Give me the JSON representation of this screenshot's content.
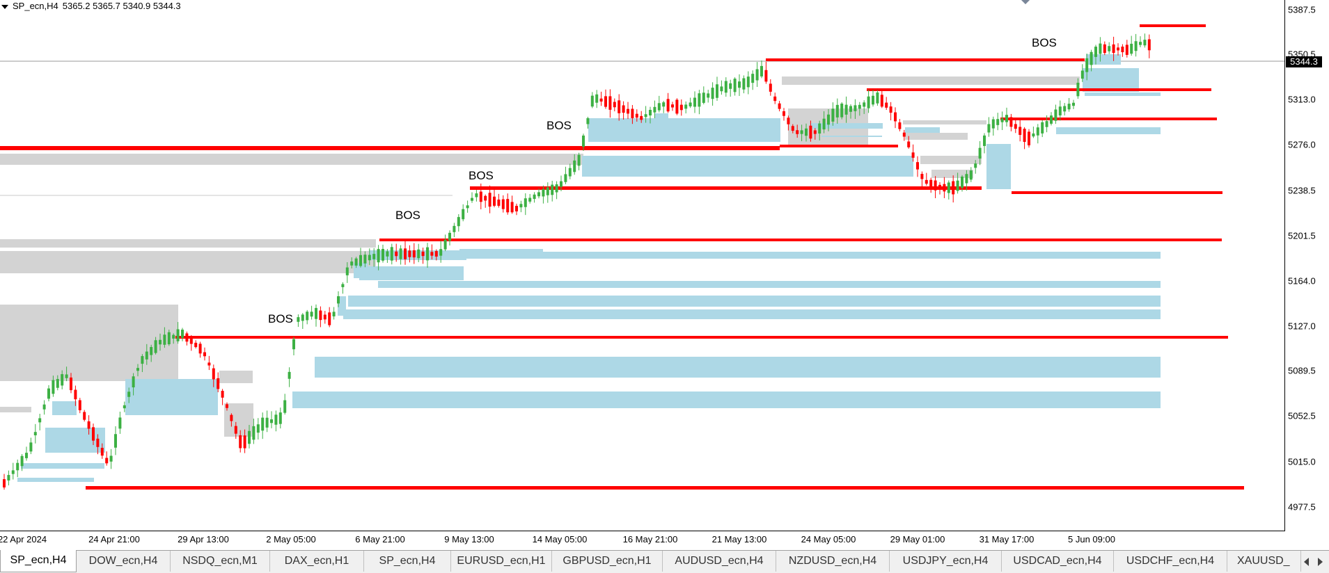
{
  "header": {
    "symbol": "SP_ecn,H4",
    "values": "5365.2 5365.7 5340.9 5344.3"
  },
  "price_axis": {
    "labels": [
      "5387.5",
      "5350.5",
      "5313.0",
      "5276.0",
      "5238.5",
      "5201.5",
      "5164.0",
      "5127.0",
      "5089.5",
      "5052.5",
      "5015.0",
      "4977.5"
    ],
    "current_price": "5344.3"
  },
  "time_axis": {
    "labels": [
      "22 Apr 2024",
      "24 Apr 21:00",
      "29 Apr 13:00",
      "2 May 05:00",
      "6 May 21:00",
      "9 May 13:00",
      "14 May 05:00",
      "16 May 21:00",
      "21 May 13:00",
      "24 May 05:00",
      "29 May 01:00",
      "31 May 17:00",
      "5 Jun 09:00"
    ]
  },
  "annotations": {
    "bos_labels": [
      "BOS",
      "BOS",
      "BOS",
      "BOS",
      "BOS"
    ]
  },
  "colors": {
    "bull": "#3cb043",
    "bear": "#ff0000",
    "level_line": "#ff0000",
    "demand_zone": "#add8e6",
    "supply_zone": "#d3d3d3",
    "current_price_bg": "#000000"
  },
  "tabs": [
    {
      "label": "SP_ecn,H4",
      "active": true
    },
    {
      "label": "DOW_ecn,H4"
    },
    {
      "label": "NSDQ_ecn,M1"
    },
    {
      "label": "DAX_ecn,H1"
    },
    {
      "label": "SP_ecn,H4"
    },
    {
      "label": "EURUSD_ecn,H1"
    },
    {
      "label": "GBPUSD_ecn,H1"
    },
    {
      "label": "AUDUSD_ecn,H4"
    },
    {
      "label": "NZDUSD_ecn,H4"
    },
    {
      "label": "USDJPY_ecn,H4"
    },
    {
      "label": "USDCAD_ecn,H4"
    },
    {
      "label": "USDCHF_ecn,H4"
    },
    {
      "label": "XAUUSD_"
    }
  ]
}
